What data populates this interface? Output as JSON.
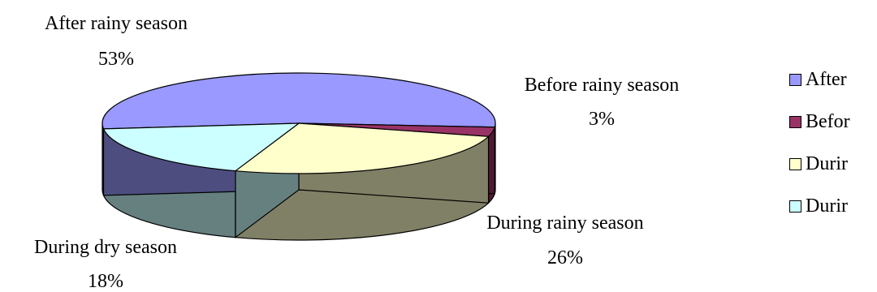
{
  "chart_data": {
    "type": "pie",
    "style": "3d",
    "slices": [
      {
        "name": "After rainy season",
        "percent_label": "53%",
        "value": 53,
        "color": "#9999FF",
        "side_color": "#4D4D80"
      },
      {
        "name": "Before rainy season",
        "percent_label": "3%",
        "value": 3,
        "color": "#993366",
        "side_color": "#4D1A33"
      },
      {
        "name": "During rainy season",
        "percent_label": "26%",
        "value": 26,
        "color": "#FFFFCC",
        "side_color": "#808066"
      },
      {
        "name": "During dry season",
        "percent_label": "18%",
        "value": 18,
        "color": "#CCFFFF",
        "side_color": "#668080"
      }
    ],
    "legend": {
      "placement": "right",
      "entries": [
        "After",
        "Befor",
        "Durir",
        "Durir"
      ]
    }
  }
}
